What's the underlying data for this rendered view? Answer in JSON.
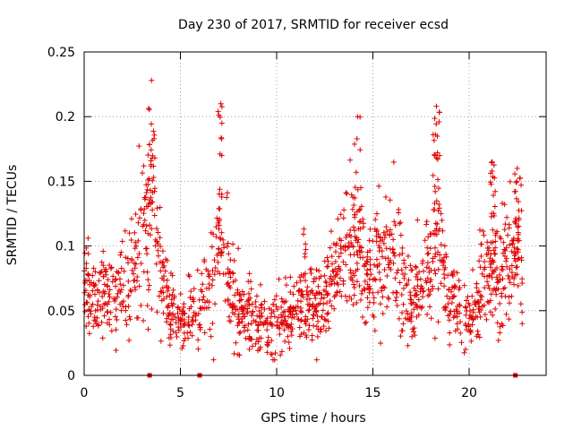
{
  "chart_data": {
    "type": "scatter",
    "title": "Day 230 of 2017, SRMTID for receiver ecsd",
    "xlabel": "GPS time / hours",
    "ylabel": "SRMTID / TECUs",
    "xlim": [
      0,
      24
    ],
    "ylim": [
      0,
      0.25
    ],
    "xticks": [
      0,
      5,
      10,
      15,
      20
    ],
    "xtick_labels": [
      "0",
      "5",
      "10",
      "15",
      "20"
    ],
    "yticks": [
      0,
      0.05,
      0.1,
      0.15,
      0.2,
      0.25
    ],
    "ytick_labels": [
      "0",
      "0.05",
      "0.1",
      "0.15",
      "0.2",
      "0.25"
    ],
    "grid": true,
    "marker": "+",
    "series_color": "#e00000",
    "zero_markers_x": [
      3.4,
      6.0,
      22.4
    ],
    "envelope": {
      "x": [
        0,
        0.5,
        1,
        1.5,
        2,
        2.5,
        3,
        3.3,
        3.5,
        3.8,
        4.2,
        4.6,
        5,
        5.5,
        6,
        6.5,
        7,
        7.5,
        8,
        8.5,
        9,
        9.5,
        10,
        10.5,
        11,
        11.5,
        12,
        12.5,
        13,
        13.5,
        14,
        14.5,
        15,
        15.5,
        16,
        16.5,
        17,
        17.5,
        18,
        18.3,
        18.7,
        19,
        19.5,
        20,
        20.5,
        21,
        21.5,
        22,
        22.5,
        22.8
      ],
      "y": [
        0.065,
        0.055,
        0.06,
        0.065,
        0.07,
        0.085,
        0.1,
        0.12,
        0.13,
        0.095,
        0.06,
        0.045,
        0.04,
        0.045,
        0.05,
        0.07,
        0.1,
        0.075,
        0.05,
        0.045,
        0.04,
        0.038,
        0.04,
        0.045,
        0.055,
        0.06,
        0.05,
        0.06,
        0.075,
        0.09,
        0.1,
        0.08,
        0.07,
        0.085,
        0.09,
        0.075,
        0.06,
        0.065,
        0.085,
        0.11,
        0.075,
        0.055,
        0.05,
        0.045,
        0.06,
        0.08,
        0.075,
        0.085,
        0.09,
        0.1
      ]
    },
    "peaks": [
      {
        "x": 3.5,
        "y": 0.228
      },
      {
        "x": 7.1,
        "y": 0.21
      },
      {
        "x": 14.2,
        "y": 0.2
      },
      {
        "x": 18.3,
        "y": 0.208
      },
      {
        "x": 21.2,
        "y": 0.165
      },
      {
        "x": 22.5,
        "y": 0.16
      }
    ],
    "n_points": 1500
  }
}
